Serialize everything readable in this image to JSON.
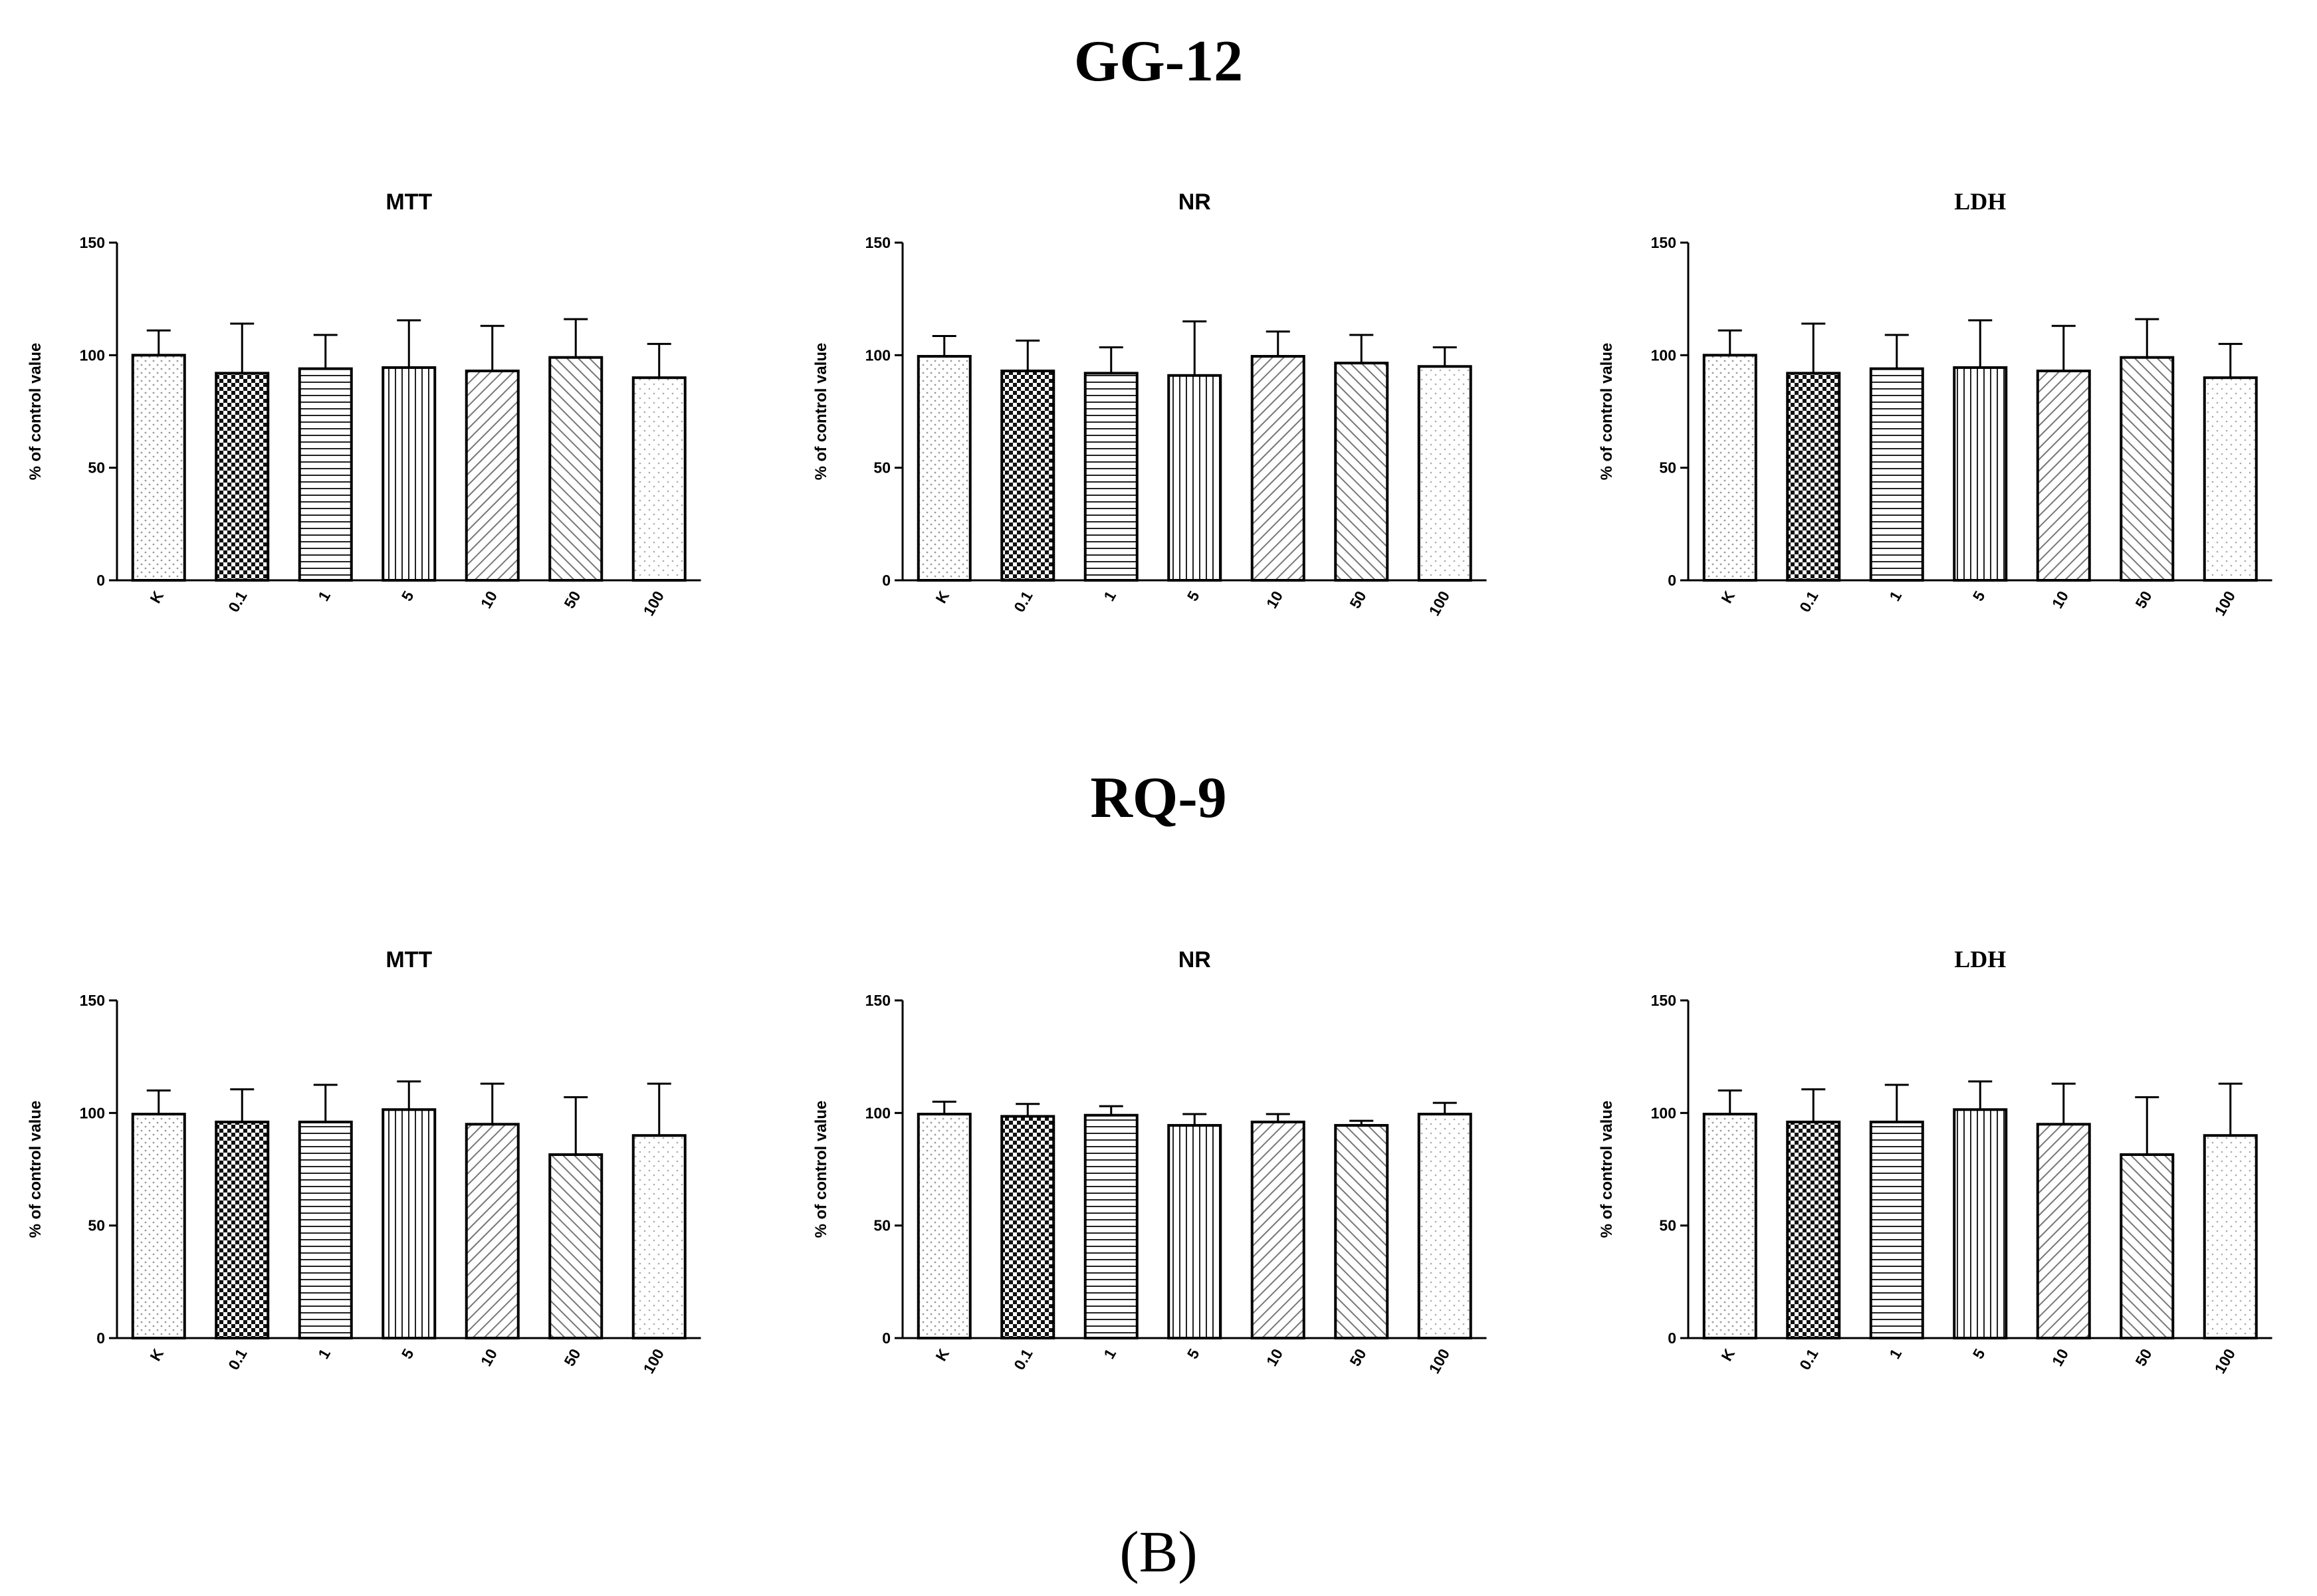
{
  "figure": {
    "section_titles": [
      "GG-12",
      "RQ-9"
    ],
    "panel_label": "(B)"
  },
  "chart_data": [
    {
      "type": "bar",
      "group": "GG-12",
      "title": "MTT",
      "categories": [
        "K",
        "0.1",
        "1",
        "5",
        "10",
        "50",
        "100"
      ],
      "values": [
        100,
        92,
        94,
        94.5,
        93,
        99,
        90
      ],
      "errors": [
        11,
        22,
        15,
        21,
        20,
        17,
        15
      ],
      "ylabel": "% of control value",
      "ylim": [
        0,
        150
      ],
      "yticks": [
        0,
        50,
        100,
        150
      ]
    },
    {
      "type": "bar",
      "group": "GG-12",
      "title": "NR",
      "categories": [
        "K",
        "0.1",
        "1",
        "5",
        "10",
        "50",
        "100"
      ],
      "values": [
        99.5,
        93,
        92,
        91,
        99.5,
        96.5,
        95
      ],
      "errors": [
        9,
        13.5,
        11.5,
        24,
        11,
        12.5,
        8.5
      ],
      "ylabel": "% of control value",
      "ylim": [
        0,
        150
      ],
      "yticks": [
        0,
        50,
        100,
        150
      ]
    },
    {
      "type": "bar",
      "group": "GG-12",
      "title": "LDH",
      "categories": [
        "K",
        "0.1",
        "1",
        "5",
        "10",
        "50",
        "100"
      ],
      "values": [
        100,
        92,
        94,
        94.5,
        93,
        99,
        90
      ],
      "errors": [
        11,
        22,
        15,
        21,
        20,
        17,
        15
      ],
      "ylabel": "% of control value",
      "ylim": [
        0,
        150
      ],
      "yticks": [
        0,
        50,
        100,
        150
      ]
    },
    {
      "type": "bar",
      "group": "RQ-9",
      "title": "MTT",
      "categories": [
        "K",
        "0.1",
        "1",
        "5",
        "10",
        "50",
        "100"
      ],
      "values": [
        99.5,
        96,
        96,
        101.5,
        95,
        81.5,
        90
      ],
      "errors": [
        10.5,
        14.5,
        16.5,
        12.5,
        18,
        25.5,
        23
      ],
      "ylabel": "% of control value",
      "ylim": [
        0,
        150
      ],
      "yticks": [
        0,
        50,
        100,
        150
      ]
    },
    {
      "type": "bar",
      "group": "RQ-9",
      "title": "NR",
      "categories": [
        "K",
        "0.1",
        "1",
        "5",
        "10",
        "50",
        "100"
      ],
      "values": [
        99.5,
        98.5,
        99,
        94.5,
        96,
        94.5,
        99.5
      ],
      "errors": [
        5.5,
        5.5,
        4,
        5,
        3.5,
        2,
        5
      ],
      "ylabel": "% of control value",
      "ylim": [
        0,
        150
      ],
      "yticks": [
        0,
        50,
        100,
        150
      ]
    },
    {
      "type": "bar",
      "group": "RQ-9",
      "title": "LDH",
      "categories": [
        "K",
        "0.1",
        "1",
        "5",
        "10",
        "50",
        "100"
      ],
      "values": [
        99.5,
        96,
        96,
        101.5,
        95,
        81.5,
        90
      ],
      "errors": [
        10.5,
        14.5,
        16.5,
        12.5,
        18,
        25.5,
        23
      ],
      "ylabel": "% of control value",
      "ylim": [
        0,
        150
      ],
      "yticks": [
        0,
        50,
        100,
        150
      ]
    }
  ]
}
